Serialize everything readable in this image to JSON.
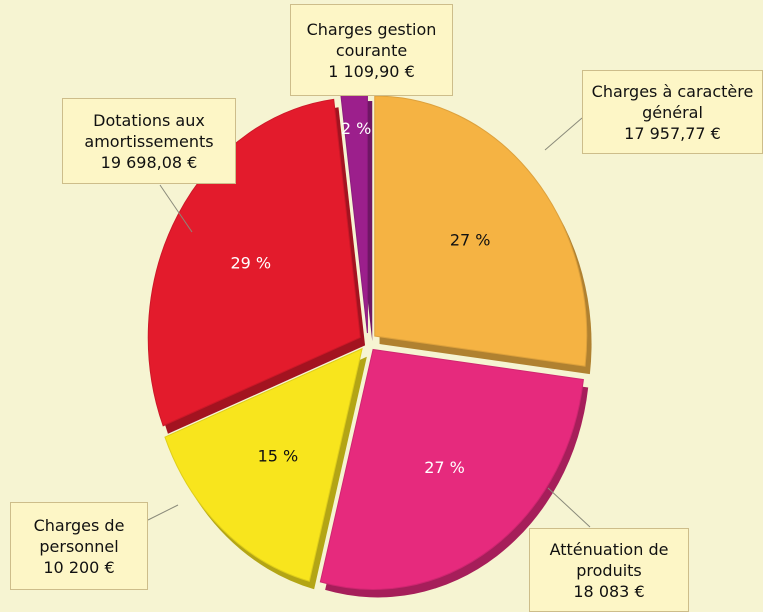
{
  "chart_data": {
    "type": "pie",
    "categories": [
      "Charges gestion courante",
      "Charges à caractère général",
      "Atténuation de produits",
      "Charges de personnel",
      "Dotations aux amortissements"
    ],
    "values": [
      2,
      27,
      27,
      15,
      29
    ],
    "value_labels": [
      "2 %",
      "27 %",
      "27 %",
      "15 %",
      "29 %"
    ],
    "amounts": [
      "1 109,90 €",
      "17 957,77 €",
      "18 083 €",
      "10 200 €",
      "19 698,08 €"
    ],
    "colors": [
      "#9c1f8c",
      "#f5b343",
      "#e62a7d",
      "#f8e51d",
      "#e31b2c"
    ]
  }
}
